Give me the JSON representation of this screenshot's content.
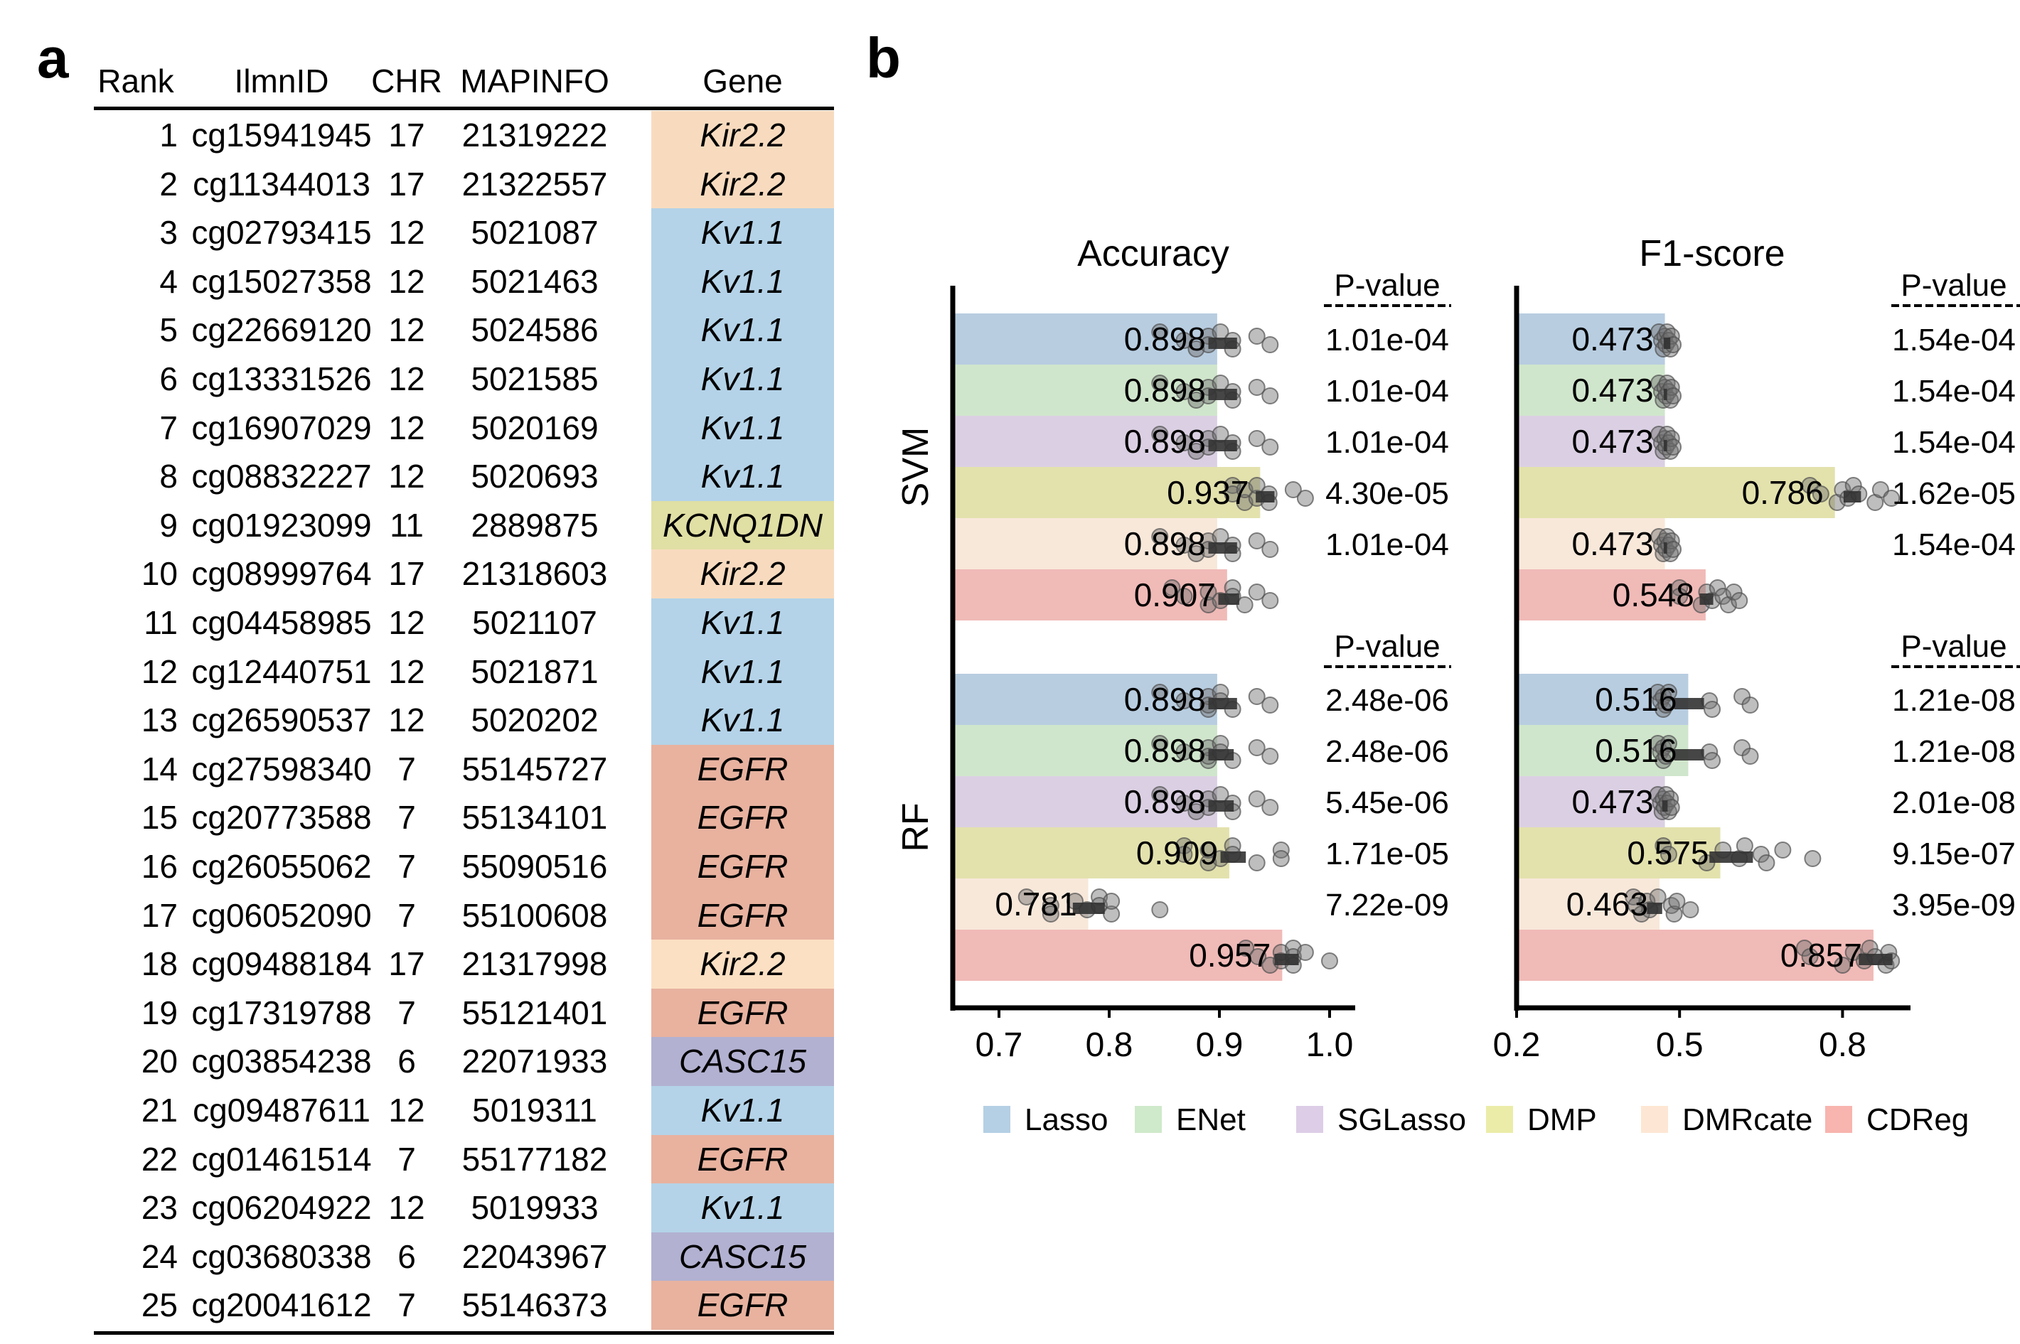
{
  "panels": {
    "a": "a",
    "b": "b"
  },
  "table": {
    "headers": [
      "Rank",
      "IlmnID",
      "CHR",
      "MAPINFO",
      "Gene"
    ],
    "gene_colors": {
      "Kir2.2": "#f8dbbf",
      "Kv1.1": "#b4d3e8",
      "KCNQ1DN": "#e0dfa4",
      "EGFR": "#e8b29f",
      "CASC15": "#b2b1d1"
    },
    "rows": [
      {
        "rank": "1",
        "id": "cg15941945",
        "chr": "17",
        "mapinfo": "21319222",
        "gene": "Kir2.2"
      },
      {
        "rank": "2",
        "id": "cg11344013",
        "chr": "17",
        "mapinfo": "21322557",
        "gene": "Kir2.2"
      },
      {
        "rank": "3",
        "id": "cg02793415",
        "chr": "12",
        "mapinfo": "5021087",
        "gene": "Kv1.1"
      },
      {
        "rank": "4",
        "id": "cg15027358",
        "chr": "12",
        "mapinfo": "5021463",
        "gene": "Kv1.1"
      },
      {
        "rank": "5",
        "id": "cg22669120",
        "chr": "12",
        "mapinfo": "5024586",
        "gene": "Kv1.1"
      },
      {
        "rank": "6",
        "id": "cg13331526",
        "chr": "12",
        "mapinfo": "5021585",
        "gene": "Kv1.1"
      },
      {
        "rank": "7",
        "id": "cg16907029",
        "chr": "12",
        "mapinfo": "5020169",
        "gene": "Kv1.1"
      },
      {
        "rank": "8",
        "id": "cg08832227",
        "chr": "12",
        "mapinfo": "5020693",
        "gene": "Kv1.1"
      },
      {
        "rank": "9",
        "id": "cg01923099",
        "chr": "11",
        "mapinfo": "2889875",
        "gene": "KCNQ1DN"
      },
      {
        "rank": "10",
        "id": "cg08999764",
        "chr": "17",
        "mapinfo": "21318603",
        "gene": "Kir2.2"
      },
      {
        "rank": "11",
        "id": "cg04458985",
        "chr": "12",
        "mapinfo": "5021107",
        "gene": "Kv1.1"
      },
      {
        "rank": "12",
        "id": "cg12440751",
        "chr": "12",
        "mapinfo": "5021871",
        "gene": "Kv1.1"
      },
      {
        "rank": "13",
        "id": "cg26590537",
        "chr": "12",
        "mapinfo": "5020202",
        "gene": "Kv1.1"
      },
      {
        "rank": "14",
        "id": "cg27598340",
        "chr": "7",
        "mapinfo": "55145727",
        "gene": "EGFR"
      },
      {
        "rank": "15",
        "id": "cg20773588",
        "chr": "7",
        "mapinfo": "55134101",
        "gene": "EGFR"
      },
      {
        "rank": "16",
        "id": "cg26055062",
        "chr": "7",
        "mapinfo": "55090516",
        "gene": "EGFR"
      },
      {
        "rank": "17",
        "id": "cg06052090",
        "chr": "7",
        "mapinfo": "55100608",
        "gene": "EGFR"
      },
      {
        "rank": "18",
        "id": "cg09488184",
        "chr": "17",
        "mapinfo": "21317998",
        "gene": "Kir2.2"
      },
      {
        "rank": "19",
        "id": "cg17319788",
        "chr": "7",
        "mapinfo": "55121401",
        "gene": "EGFR"
      },
      {
        "rank": "20",
        "id": "cg03854238",
        "chr": "6",
        "mapinfo": "22071933",
        "gene": "CASC15"
      },
      {
        "rank": "21",
        "id": "cg09487611",
        "chr": "12",
        "mapinfo": "5019311",
        "gene": "Kv1.1"
      },
      {
        "rank": "22",
        "id": "cg01461514",
        "chr": "7",
        "mapinfo": "55177182",
        "gene": "EGFR"
      },
      {
        "rank": "23",
        "id": "cg06204922",
        "chr": "12",
        "mapinfo": "5019933",
        "gene": "Kv1.1"
      },
      {
        "rank": "24",
        "id": "cg03680338",
        "chr": "6",
        "mapinfo": "22043967",
        "gene": "CASC15"
      },
      {
        "rank": "25",
        "id": "cg20041612",
        "chr": "7",
        "mapinfo": "55146373",
        "gene": "EGFR"
      }
    ]
  },
  "chart_data": {
    "type": "bar",
    "orientation": "horizontal",
    "groups": [
      "SVM",
      "RF"
    ],
    "methods": [
      "Lasso",
      "ENet",
      "SGLasso",
      "DMP",
      "DMRcate",
      "CDReg"
    ],
    "method_colors": {
      "Lasso": "#b8cde0",
      "ENet": "#d0e6cc",
      "SGLasso": "#dbd0e3",
      "DMP": "#e3e2ad",
      "DMRcate": "#f8e8da",
      "CDReg": "#f0bab7"
    },
    "legend": {
      "placement": "bottom",
      "items": [
        "Lasso",
        "ENet",
        "SGLasso",
        "DMP",
        "DMRcate",
        "CDReg"
      ],
      "swatch_colors": [
        "#b5cfe4",
        "#cfe9cb",
        "#ddcde6",
        "#ebeca8",
        "#fde7d4",
        "#f8b4ae"
      ]
    },
    "pvalue_header": "P-value",
    "panels": [
      {
        "title": "Accuracy",
        "xlim": [
          0.658,
          1.023
        ],
        "xticks": [
          0.7,
          0.8,
          0.9,
          1.0
        ],
        "xtick_labels": [
          "0.7",
          "0.8",
          "0.9",
          "1.0"
        ],
        "series": [
          {
            "group": "SVM",
            "values": [
              0.898,
              0.898,
              0.898,
              0.937,
              0.898,
              0.907
            ],
            "labels": [
              "0.898",
              "0.898",
              "0.898",
              "0.937",
              "0.898",
              "0.907"
            ],
            "pvalues": [
              "1.01e-04",
              "1.01e-04",
              "1.01e-04",
              "4.30e-05",
              "1.01e-04",
              ""
            ],
            "errors": [
              [
                0.89,
                0.916
              ],
              [
                0.89,
                0.916
              ],
              [
                0.89,
                0.916
              ],
              [
                0.933,
                0.95
              ],
              [
                0.89,
                0.916
              ],
              [
                0.899,
                0.918
              ]
            ],
            "points": [
              [
                0.846,
                0.868,
                0.879,
                0.89,
                0.89,
                0.901,
                0.912,
                0.912,
                0.934,
                0.946
              ],
              [
                0.846,
                0.868,
                0.879,
                0.89,
                0.89,
                0.901,
                0.912,
                0.912,
                0.934,
                0.946
              ],
              [
                0.846,
                0.868,
                0.879,
                0.89,
                0.89,
                0.901,
                0.912,
                0.912,
                0.934,
                0.946
              ],
              [
                0.912,
                0.912,
                0.923,
                0.923,
                0.934,
                0.934,
                0.945,
                0.945,
                0.967,
                0.978
              ],
              [
                0.846,
                0.868,
                0.879,
                0.89,
                0.89,
                0.901,
                0.912,
                0.912,
                0.934,
                0.946
              ],
              [
                0.857,
                0.868,
                0.89,
                0.89,
                0.901,
                0.912,
                0.912,
                0.923,
                0.934,
                0.946
              ]
            ]
          },
          {
            "group": "RF",
            "values": [
              0.898,
              0.898,
              0.898,
              0.909,
              0.781,
              0.957
            ],
            "labels": [
              "0.898",
              "0.898",
              "0.898",
              "0.909",
              "0.781",
              "0.957"
            ],
            "pvalues": [
              "2.48e-06",
              "2.48e-06",
              "5.45e-06",
              "1.71e-05",
              "7.22e-09",
              ""
            ],
            "errors": [
              [
                0.89,
                0.916
              ],
              [
                0.89,
                0.913
              ],
              [
                0.89,
                0.913
              ],
              [
                0.901,
                0.924
              ],
              [
                0.767,
                0.796
              ],
              [
                0.95,
                0.972
              ]
            ],
            "points": [
              [
                0.846,
                0.868,
                0.89,
                0.89,
                0.89,
                0.901,
                0.901,
                0.912,
                0.934,
                0.946
              ],
              [
                0.846,
                0.868,
                0.89,
                0.89,
                0.89,
                0.901,
                0.901,
                0.912,
                0.934,
                0.946
              ],
              [
                0.846,
                0.868,
                0.879,
                0.89,
                0.89,
                0.901,
                0.912,
                0.912,
                0.934,
                0.946
              ],
              [
                0.868,
                0.868,
                0.89,
                0.89,
                0.901,
                0.912,
                0.912,
                0.934,
                0.956,
                0.956
              ],
              [
                0.725,
                0.747,
                0.747,
                0.769,
                0.78,
                0.791,
                0.791,
                0.802,
                0.802,
                0.846
              ],
              [
                0.924,
                0.935,
                0.946,
                0.956,
                0.956,
                0.967,
                0.967,
                0.967,
                0.978,
                1.0
              ]
            ]
          }
        ]
      },
      {
        "title": "F1-score",
        "xlim": [
          0.2,
          0.925
        ],
        "xticks": [
          0.2,
          0.5,
          0.8
        ],
        "xtick_labels": [
          "0.2",
          "0.5",
          "0.8"
        ],
        "series": [
          {
            "group": "SVM",
            "values": [
              0.473,
              0.473,
              0.473,
              0.786,
              0.473,
              0.548
            ],
            "labels": [
              "0.473",
              "0.473",
              "0.473",
              "0.786",
              "0.473",
              "0.548"
            ],
            "pvalues": [
              "1.54e-04",
              "1.54e-04",
              "1.54e-04",
              "1.62e-05",
              "1.54e-04",
              ""
            ],
            "errors": [
              [
                0.471,
                0.483
              ],
              [
                0.471,
                0.477
              ],
              [
                0.471,
                0.477
              ],
              [
                0.802,
                0.834
              ],
              [
                0.471,
                0.477
              ],
              [
                0.537,
                0.562
              ]
            ],
            "points": [
              [
                0.462,
                0.467,
                0.47,
                0.473,
                0.475,
                0.477,
                0.48,
                0.483,
                0.485,
                0.488
              ],
              [
                0.462,
                0.467,
                0.47,
                0.473,
                0.475,
                0.477,
                0.48,
                0.483,
                0.485,
                0.488
              ],
              [
                0.462,
                0.467,
                0.47,
                0.473,
                0.475,
                0.477,
                0.48,
                0.483,
                0.485,
                0.488
              ],
              [
                0.74,
                0.76,
                0.79,
                0.8,
                0.81,
                0.82,
                0.83,
                0.86,
                0.87,
                0.89
              ],
              [
                0.462,
                0.467,
                0.47,
                0.473,
                0.475,
                0.477,
                0.48,
                0.483,
                0.485,
                0.488
              ],
              [
                0.5,
                0.5,
                0.54,
                0.55,
                0.56,
                0.57,
                0.58,
                0.59,
                0.6,
                0.61
              ]
            ]
          },
          {
            "group": "RF",
            "values": [
              0.516,
              0.516,
              0.473,
              0.575,
              0.463,
              0.857
            ],
            "labels": [
              "0.516",
              "0.516",
              "0.473",
              "0.575",
              "0.463",
              "0.857"
            ],
            "pvalues": [
              "1.21e-08",
              "1.21e-08",
              "2.01e-08",
              "9.15e-07",
              "3.95e-09",
              ""
            ],
            "errors": [
              [
                0.49,
                0.545
              ],
              [
                0.49,
                0.545
              ],
              [
                0.468,
                0.478
              ],
              [
                0.555,
                0.635
              ],
              [
                0.44,
                0.468
              ],
              [
                0.83,
                0.892
              ]
            ],
            "points": [
              [
                0.46,
                0.465,
                0.47,
                0.47,
                0.475,
                0.48,
                0.555,
                0.56,
                0.615,
                0.63
              ],
              [
                0.46,
                0.465,
                0.47,
                0.47,
                0.475,
                0.48,
                0.555,
                0.56,
                0.615,
                0.63
              ],
              [
                0.46,
                0.465,
                0.468,
                0.47,
                0.472,
                0.475,
                0.477,
                0.48,
                0.483,
                0.485
              ],
              [
                0.47,
                0.48,
                0.55,
                0.58,
                0.61,
                0.62,
                0.65,
                0.66,
                0.69,
                0.745
              ],
              [
                0.415,
                0.42,
                0.43,
                0.44,
                0.445,
                0.46,
                0.485,
                0.49,
                0.495,
                0.52
              ],
              [
                0.73,
                0.74,
                0.8,
                0.82,
                0.84,
                0.85,
                0.86,
                0.88,
                0.885,
                0.89
              ]
            ]
          }
        ]
      }
    ]
  }
}
